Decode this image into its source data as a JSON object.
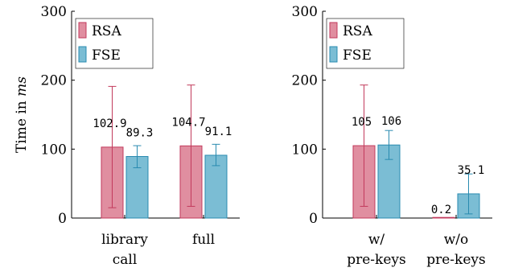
{
  "colors": {
    "rsa_fill": "#e08ea0",
    "rsa_stroke": "#c23a5c",
    "fse_fill": "#7bbdd4",
    "fse_stroke": "#2a8bb0",
    "axis": "#000000"
  },
  "chart_data": [
    {
      "type": "bar",
      "title": "",
      "xlabel": "",
      "ylabel": "Time in",
      "ylabel_unit": "ms",
      "ylim": [
        0,
        300
      ],
      "yticks": [
        "0",
        "100",
        "200",
        "300"
      ],
      "categories": [
        [
          "library",
          "call"
        ],
        [
          "full"
        ]
      ],
      "legend": {
        "placement": "top-left",
        "entries": [
          "RSA",
          "FSE"
        ]
      },
      "series": [
        {
          "name": "RSA",
          "values": [
            102.9,
            104.7
          ],
          "labels": [
            "102.9",
            "104.7"
          ],
          "err": [
            [
              15,
              191
            ],
            [
              17,
              193
            ]
          ]
        },
        {
          "name": "FSE",
          "values": [
            89.3,
            91.1
          ],
          "labels": [
            "89.3",
            "91.1"
          ],
          "err": [
            [
              73,
              105
            ],
            [
              76,
              107
            ]
          ]
        }
      ]
    },
    {
      "type": "bar",
      "title": "",
      "xlabel": "",
      "ylabel": "",
      "ylim": [
        0,
        300
      ],
      "yticks": [
        "0",
        "100",
        "200",
        "300"
      ],
      "categories": [
        [
          "w/",
          "pre-keys"
        ],
        [
          "w/o",
          "pre-keys"
        ]
      ],
      "legend": {
        "placement": "top-left",
        "entries": [
          "RSA",
          "FSE"
        ]
      },
      "series": [
        {
          "name": "RSA",
          "values": [
            105,
            0.2
          ],
          "labels": [
            "105",
            "0.2"
          ],
          "err": [
            [
              17,
              193
            ],
            null
          ]
        },
        {
          "name": "FSE",
          "values": [
            106,
            35.1
          ],
          "labels": [
            "106",
            "35.1"
          ],
          "err": [
            [
              85,
              127
            ],
            [
              6,
              64
            ]
          ]
        }
      ]
    }
  ]
}
